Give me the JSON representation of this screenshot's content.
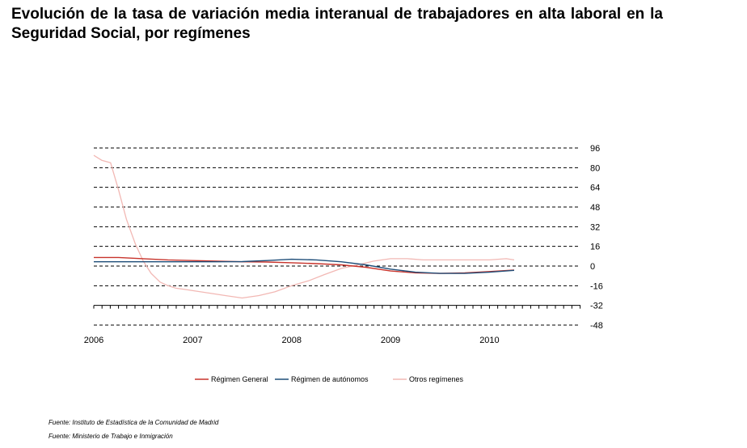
{
  "chart_data": {
    "type": "line",
    "title": "Evolución de la tasa de variación media interanual de trabajadores en alta laboral en la Seguridad Social, por  regímenes",
    "x_labels": [
      "2006",
      "2007",
      "2008",
      "2009",
      "2010"
    ],
    "x_range": [
      2006.0,
      2010.92
    ],
    "y_ticks": [
      96,
      80,
      64,
      48,
      32,
      16,
      0,
      -16,
      -32,
      -48
    ],
    "ylim": [
      -48,
      96
    ],
    "y_axis_position": "right",
    "grid": "dashed horizontal",
    "legend_position": "bottom",
    "series": [
      {
        "name": "Régimen General",
        "color": "#c8342c",
        "x": [
          2006.0,
          2006.25,
          2006.5,
          2006.75,
          2007.0,
          2007.25,
          2007.5,
          2007.75,
          2008.0,
          2008.25,
          2008.5,
          2008.75,
          2009.0,
          2009.25,
          2009.5,
          2009.75,
          2010.0,
          2010.25
        ],
        "y": [
          7,
          7,
          6,
          5,
          4.5,
          4,
          3.5,
          3.3,
          2.7,
          2,
          1,
          -1,
          -4,
          -5.5,
          -6,
          -5.5,
          -4.5,
          -3.2
        ]
      },
      {
        "name": "Régimen de autónomos",
        "color": "#1f4e79",
        "x": [
          2006.0,
          2006.25,
          2006.5,
          2006.75,
          2007.0,
          2007.25,
          2007.5,
          2007.75,
          2008.0,
          2008.25,
          2008.5,
          2008.75,
          2009.0,
          2009.25,
          2009.5,
          2009.75,
          2010.0,
          2010.25
        ],
        "y": [
          3.5,
          3.5,
          3.5,
          3.5,
          3.5,
          3.5,
          3.6,
          4.5,
          5.5,
          5,
          3.5,
          1,
          -2.5,
          -5,
          -6,
          -6,
          -5,
          -3.5
        ]
      },
      {
        "name": "Otros regímenes",
        "color": "#f2b8b4",
        "x": [
          2006.0,
          2006.08,
          2006.17,
          2006.25,
          2006.33,
          2006.42,
          2006.5,
          2006.58,
          2006.67,
          2006.75,
          2006.83,
          2006.92,
          2007.0,
          2007.17,
          2007.33,
          2007.5,
          2007.67,
          2007.83,
          2008.0,
          2008.17,
          2008.33,
          2008.5,
          2008.67,
          2008.83,
          2009.0,
          2009.17,
          2009.33,
          2009.5,
          2009.67,
          2009.83,
          2010.0,
          2010.17,
          2010.25
        ],
        "y": [
          90,
          86,
          84,
          62,
          38,
          18,
          4,
          -6,
          -13,
          -16,
          -18,
          -19,
          -20,
          -22,
          -24,
          -26,
          -24,
          -21,
          -16,
          -12,
          -7,
          -2,
          1,
          4,
          6,
          6,
          5,
          5,
          5,
          5,
          5,
          6,
          5
        ]
      }
    ]
  },
  "sources": [
    "Fuente: Instituto de Estadística de la Comunidad de Madrid",
    "Fuente: Ministerio de Trabajo e Inmigración"
  ]
}
